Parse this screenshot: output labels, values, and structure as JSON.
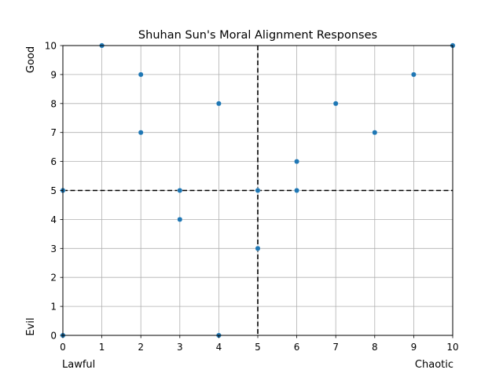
{
  "chart_data": {
    "type": "scatter",
    "title": "Shuhan Sun's Moral Alignment Responses",
    "xlabel": "",
    "ylabel": "",
    "xlim": [
      0,
      10
    ],
    "ylim": [
      0,
      10
    ],
    "xticks": [
      0,
      1,
      2,
      3,
      4,
      5,
      6,
      7,
      8,
      9,
      10
    ],
    "yticks": [
      0,
      1,
      2,
      3,
      4,
      5,
      6,
      7,
      8,
      9,
      10
    ],
    "grid": true,
    "corner_labels": {
      "x_low": "Lawful",
      "x_high": "Chaotic",
      "y_low": "Evil",
      "y_high": "Good"
    },
    "reference_lines": {
      "vertical_x": 5,
      "horizontal_y": 5,
      "style": "dashed",
      "color": "#000000"
    },
    "marker_color": "#1f77b4",
    "points": [
      {
        "x": 0,
        "y": 0
      },
      {
        "x": 0,
        "y": 5
      },
      {
        "x": 1,
        "y": 10
      },
      {
        "x": 2,
        "y": 9
      },
      {
        "x": 2,
        "y": 7
      },
      {
        "x": 3,
        "y": 5
      },
      {
        "x": 3,
        "y": 4
      },
      {
        "x": 4,
        "y": 8
      },
      {
        "x": 4,
        "y": 0
      },
      {
        "x": 5,
        "y": 5
      },
      {
        "x": 5,
        "y": 3
      },
      {
        "x": 6,
        "y": 6
      },
      {
        "x": 6,
        "y": 5
      },
      {
        "x": 7,
        "y": 8
      },
      {
        "x": 8,
        "y": 7
      },
      {
        "x": 9,
        "y": 9
      },
      {
        "x": 10,
        "y": 10
      }
    ]
  }
}
